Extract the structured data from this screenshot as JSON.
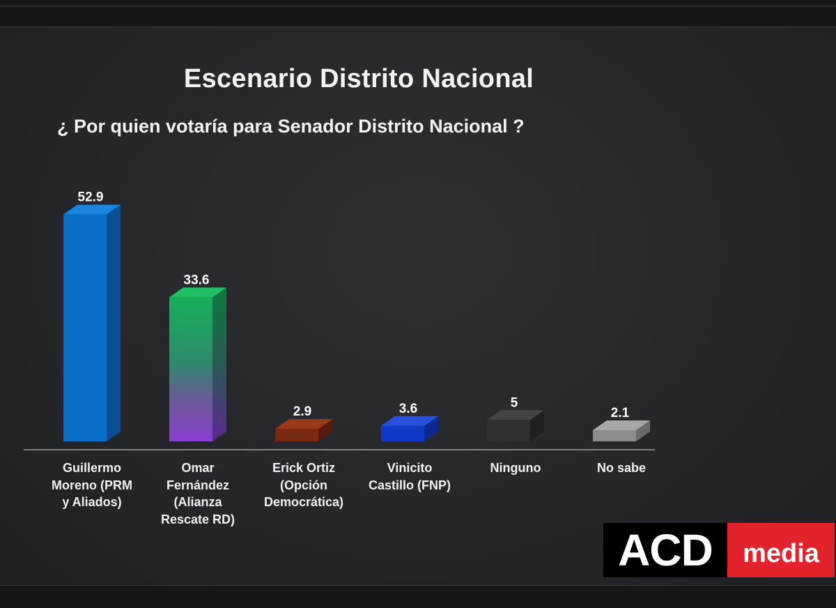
{
  "chart_data": {
    "type": "bar",
    "title": "Escenario Distrito Nacional",
    "subtitle": "¿ Por quien votaría para Senador Distrito Nacional ?",
    "categories": [
      "Guillermo Moreno (PRM y Aliados)",
      "Omar Fernández (Alianza Rescate RD)",
      "Erick Ortiz (Opción Democrática)",
      "Vinicito Castillo (FNP)",
      "Ninguno",
      "No sabe"
    ],
    "category_lines": [
      [
        "Guillermo",
        "Moreno (PRM",
        "y Aliados)"
      ],
      [
        "Omar",
        "Fernández",
        "(Alianza",
        "Rescate RD)"
      ],
      [
        "Erick Ortiz",
        "(Opción",
        "Democrática)"
      ],
      [
        "Vinicito",
        "Castillo (FNP)"
      ],
      [
        "Ninguno"
      ],
      [
        "No sabe"
      ]
    ],
    "values": [
      52.9,
      33.6,
      2.9,
      3.6,
      5,
      2.1
    ],
    "value_labels": [
      "52.9",
      "33.6",
      "2.9",
      "3.6",
      "5",
      "2.1"
    ],
    "colors": [
      "#0a6fc8",
      "gradient-green-purple",
      "#7a2a12",
      "#1238c8",
      "#2f3033",
      "#8c8c8c"
    ],
    "grid": false,
    "legend": "none"
  },
  "logo": {
    "left_text": "ACD",
    "right_text": "media",
    "left_color": "#000000",
    "right_color": "#e3232b"
  }
}
